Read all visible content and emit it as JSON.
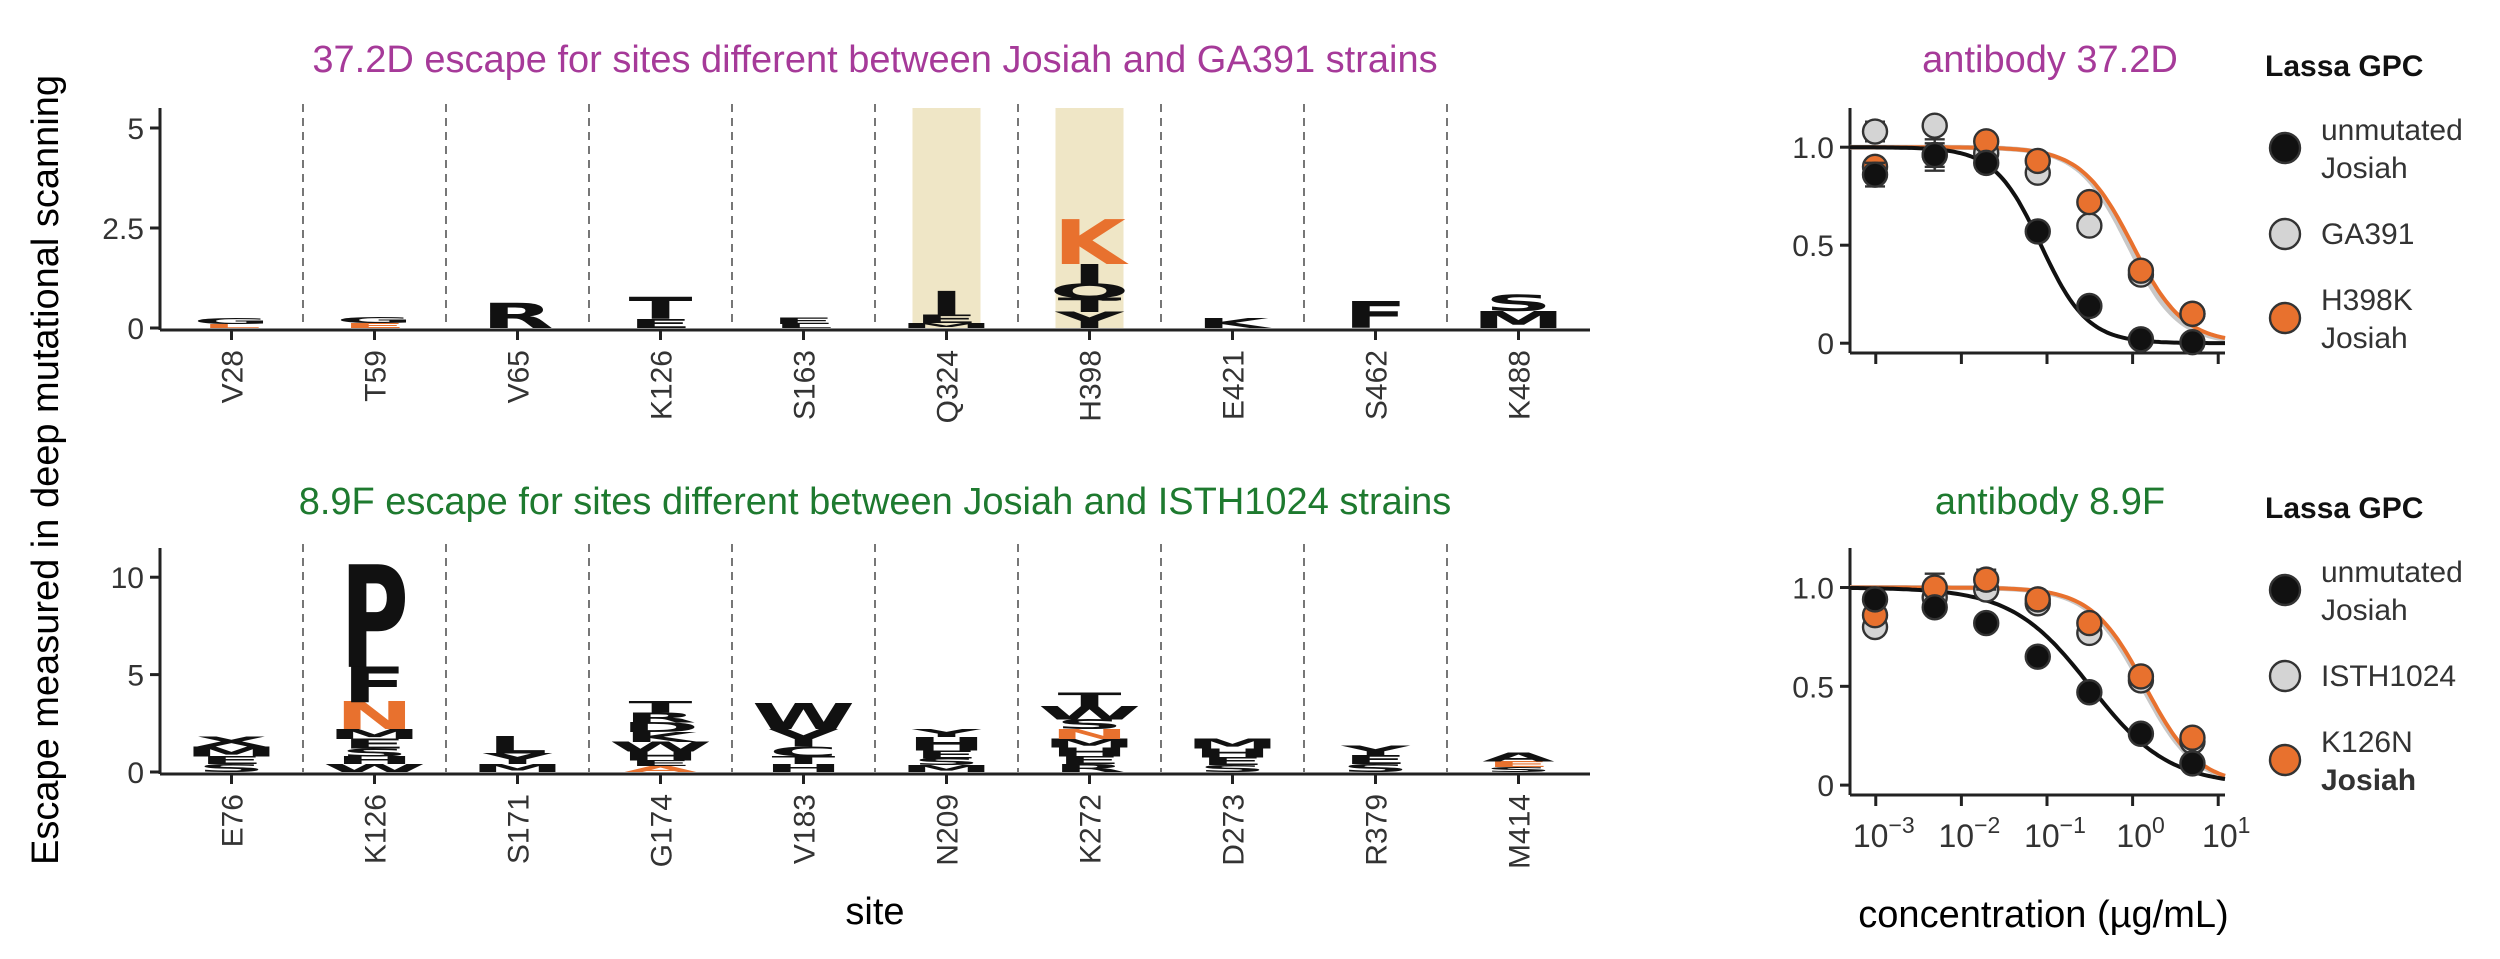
{
  "shared": {
    "ylabel": "Escape measured in deep mutational scanning",
    "site_xlabel": "site",
    "curve_xlabel": "concentration (µg/mL)",
    "x_tick_labels": [
      {
        "base": "10",
        "exp": "−3"
      },
      {
        "base": "10",
        "exp": "−2"
      },
      {
        "base": "10",
        "exp": "−1"
      },
      {
        "base": "10",
        "exp": "0"
      },
      {
        "base": "10",
        "exp": "1"
      }
    ]
  },
  "colors": {
    "title_top": "#A63A99",
    "title_bottom": "#1E7A2F",
    "orange": "#E8712E",
    "highlight": "#EFE6C6",
    "grey_point": "#D4D4D4",
    "black": "#111111",
    "grey_curve": "#C8C8C8"
  },
  "chart_data": [
    {
      "type": "logo",
      "title": "37.2D escape for sites different between Josiah and GA391 strains",
      "xlabel": "",
      "ylim": [
        0,
        5.5
      ],
      "y_ticks": [
        {
          "v": 0,
          "label": "0"
        },
        {
          "v": 2.5,
          "label": "2.5"
        },
        {
          "v": 5,
          "label": "5"
        }
      ],
      "sites": [
        {
          "label": "V28",
          "highlight": false,
          "letters": [
            {
              "l": "G",
              "h": 0.14,
              "c": "black"
            },
            {
              "l": "L",
              "h": 0.1,
              "c": "orange"
            }
          ]
        },
        {
          "label": "T59",
          "highlight": false,
          "letters": [
            {
              "l": "G",
              "h": 0.14,
              "c": "black"
            },
            {
              "l": "E",
              "h": 0.12,
              "c": "orange"
            }
          ]
        },
        {
          "label": "V65",
          "highlight": false,
          "letters": [
            {
              "l": "R",
              "h": 0.62,
              "c": "black"
            }
          ]
        },
        {
          "label": "K126",
          "highlight": false,
          "letters": [
            {
              "l": "T",
              "h": 0.55,
              "c": "black"
            },
            {
              "l": "E",
              "h": 0.22,
              "c": "black"
            }
          ]
        },
        {
          "label": "S163",
          "highlight": false,
          "letters": [
            {
              "l": "E",
              "h": 0.16,
              "c": "black"
            },
            {
              "l": "L",
              "h": 0.1,
              "c": "black"
            }
          ]
        },
        {
          "label": "Q324",
          "highlight": true,
          "letters": [
            {
              "l": "I",
              "h": 0.6,
              "c": "black"
            },
            {
              "l": "E",
              "h": 0.2,
              "c": "black"
            },
            {
              "l": "M",
              "h": 0.12,
              "c": "black"
            }
          ]
        },
        {
          "label": "H398",
          "highlight": true,
          "letters": [
            {
              "l": "K",
              "h": 1.1,
              "c": "orange"
            },
            {
              "l": "I",
              "h": 0.5,
              "c": "black"
            },
            {
              "l": "Q",
              "h": 0.35,
              "c": "black"
            },
            {
              "l": "T",
              "h": 0.35,
              "c": "black"
            },
            {
              "l": "Y",
              "h": 0.4,
              "c": "black"
            }
          ]
        },
        {
          "label": "E421",
          "highlight": false,
          "letters": [
            {
              "l": "K",
              "h": 0.24,
              "c": "black"
            }
          ]
        },
        {
          "label": "S462",
          "highlight": false,
          "letters": [
            {
              "l": "F",
              "h": 0.65,
              "c": "black"
            }
          ]
        },
        {
          "label": "K488",
          "highlight": false,
          "letters": [
            {
              "l": "S",
              "h": 0.4,
              "c": "black"
            },
            {
              "l": "M",
              "h": 0.42,
              "c": "black"
            }
          ]
        }
      ]
    },
    {
      "type": "line",
      "title": "antibody 37.2D",
      "xlabel": "",
      "x_scale": "log",
      "xlim": [
        0.0005,
        12
      ],
      "ylim": [
        -0.05,
        1.2
      ],
      "y_ticks": [
        {
          "v": 0,
          "label": "0"
        },
        {
          "v": 0.5,
          "label": "0.5"
        },
        {
          "v": 1,
          "label": "1.0"
        }
      ],
      "x_ticks": [
        0.001,
        0.01,
        0.1,
        1,
        10
      ],
      "show_x_tick_labels": false,
      "legend": {
        "title": "Lassa GPC",
        "placement": "right",
        "entries": [
          {
            "lines": [
              "unmutated",
              "Josiah"
            ],
            "color": "black",
            "bold": [
              false,
              false
            ]
          },
          {
            "lines": [
              "GA391"
            ],
            "color": "grey_point",
            "bold": [
              false
            ]
          },
          {
            "lines": [
              "H398K",
              "Josiah"
            ],
            "color": "orange",
            "bold": [
              false,
              false
            ]
          }
        ]
      },
      "series": [
        {
          "name": "unmutated Josiah",
          "color": "black",
          "ic50": 0.085,
          "hill": 1.6,
          "x": [
            0.00098,
            0.00488,
            0.0195,
            0.078,
            0.3125,
            1.25,
            5
          ],
          "y": [
            0.86,
            0.96,
            0.92,
            0.57,
            0.19,
            0.02,
            0.005
          ],
          "err": [
            0.06,
            0.08,
            0.04,
            0.02,
            0.02,
            0.01,
            0.01
          ]
        },
        {
          "name": "GA391",
          "color": "grey_point",
          "ic50": 0.9,
          "hill": 1.5,
          "x": [
            0.00098,
            0.00488,
            0.0195,
            0.078,
            0.3125,
            1.25,
            5
          ],
          "y": [
            1.08,
            1.11,
            0.97,
            0.87,
            0.6,
            0.35,
            0.15
          ],
          "err": [
            0.05,
            0.03,
            0.03,
            0.03,
            0.03,
            0.02,
            0.02
          ]
        },
        {
          "name": "H398K Josiah",
          "color": "orange",
          "ic50": 1.0,
          "hill": 1.45,
          "x": [
            0.00098,
            0.00488,
            0.0195,
            0.078,
            0.3125,
            1.25,
            5
          ],
          "y": [
            0.9,
            0.96,
            1.03,
            0.93,
            0.72,
            0.37,
            0.15
          ],
          "err": [
            0.03,
            0.06,
            0.03,
            0.04,
            0.03,
            0.02,
            0.02
          ]
        }
      ]
    },
    {
      "type": "logo",
      "title": "8.9F escape for sites different between Josiah and ISTH1024 strains",
      "xlabel": "site",
      "ylim": [
        0,
        11.5
      ],
      "y_ticks": [
        {
          "v": 0,
          "label": "0"
        },
        {
          "v": 5,
          "label": "5"
        },
        {
          "v": 10,
          "label": "10"
        }
      ],
      "sites": [
        {
          "label": "E76",
          "highlight": false,
          "letters": [
            {
              "l": "X",
              "h": 0.5,
              "c": "black"
            },
            {
              "l": "M",
              "h": 0.5,
              "c": "black"
            },
            {
              "l": "E",
              "h": 0.4,
              "c": "black"
            },
            {
              "l": "S",
              "h": 0.4,
              "c": "black"
            }
          ]
        },
        {
          "label": "K126",
          "highlight": false,
          "letters": [
            {
              "l": "P",
              "h": 5.2,
              "c": "black"
            },
            {
              "l": "F",
              "h": 1.8,
              "c": "black"
            },
            {
              "l": "N",
              "h": 1.4,
              "c": "orange"
            },
            {
              "l": "M",
              "h": 0.5,
              "c": "black"
            },
            {
              "l": "E",
              "h": 0.5,
              "c": "black"
            },
            {
              "l": "S",
              "h": 0.4,
              "c": "black"
            },
            {
              "l": "H",
              "h": 0.4,
              "c": "black"
            },
            {
              "l": "W",
              "h": 0.4,
              "c": "black"
            }
          ]
        },
        {
          "label": "S171",
          "highlight": false,
          "letters": [
            {
              "l": "L",
              "h": 0.9,
              "c": "black"
            },
            {
              "l": "Y",
              "h": 0.55,
              "c": "black"
            },
            {
              "l": "M",
              "h": 0.4,
              "c": "black"
            }
          ]
        },
        {
          "label": "G174",
          "highlight": false,
          "letters": [
            {
              "l": "T",
              "h": 0.6,
              "c": "black"
            },
            {
              "l": "R",
              "h": 0.5,
              "c": "black"
            },
            {
              "l": "D",
              "h": 0.5,
              "c": "black"
            },
            {
              "l": "K",
              "h": 0.5,
              "c": "black"
            },
            {
              "l": "W",
              "h": 0.5,
              "c": "black"
            },
            {
              "l": "H",
              "h": 0.45,
              "c": "black"
            },
            {
              "l": "E",
              "h": 0.3,
              "c": "black"
            },
            {
              "l": "A",
              "h": 0.3,
              "c": "orange"
            }
          ]
        },
        {
          "label": "V183",
          "highlight": false,
          "letters": [
            {
              "l": "W",
              "h": 1.3,
              "c": "black"
            },
            {
              "l": "Y",
              "h": 0.9,
              "c": "black"
            },
            {
              "l": "C",
              "h": 0.5,
              "c": "black"
            },
            {
              "l": "T",
              "h": 0.4,
              "c": "black"
            },
            {
              "l": "H",
              "h": 0.4,
              "c": "black"
            }
          ]
        },
        {
          "label": "N209",
          "highlight": false,
          "letters": [
            {
              "l": "Y",
              "h": 0.4,
              "c": "black"
            },
            {
              "l": "H",
              "h": 0.7,
              "c": "black"
            },
            {
              "l": "E",
              "h": 0.4,
              "c": "black"
            },
            {
              "l": "S",
              "h": 0.35,
              "c": "black"
            },
            {
              "l": "M",
              "h": 0.35,
              "c": "black"
            }
          ]
        },
        {
          "label": "K272",
          "highlight": false,
          "letters": [
            {
              "l": "T",
              "h": 0.7,
              "c": "black"
            },
            {
              "l": "W",
              "h": 0.7,
              "c": "black"
            },
            {
              "l": "S",
              "h": 0.5,
              "c": "black"
            },
            {
              "l": "N",
              "h": 0.5,
              "c": "orange"
            },
            {
              "l": "M",
              "h": 0.45,
              "c": "black"
            },
            {
              "l": "H",
              "h": 0.45,
              "c": "black"
            },
            {
              "l": "E",
              "h": 0.4,
              "c": "black"
            },
            {
              "l": "R",
              "h": 0.4,
              "c": "black"
            }
          ]
        },
        {
          "label": "D273",
          "highlight": false,
          "letters": [
            {
              "l": "M",
              "h": 0.5,
              "c": "black"
            },
            {
              "l": "H",
              "h": 0.45,
              "c": "black"
            },
            {
              "l": "E",
              "h": 0.4,
              "c": "black"
            },
            {
              "l": "S",
              "h": 0.35,
              "c": "black"
            }
          ]
        },
        {
          "label": "R379",
          "highlight": false,
          "letters": [
            {
              "l": "Y",
              "h": 0.5,
              "c": "black"
            },
            {
              "l": "E",
              "h": 0.45,
              "c": "black"
            },
            {
              "l": "S",
              "h": 0.4,
              "c": "black"
            }
          ]
        },
        {
          "label": "M414",
          "highlight": false,
          "letters": [
            {
              "l": "A",
              "h": 0.45,
              "c": "black"
            },
            {
              "l": "E",
              "h": 0.3,
              "c": "orange"
            },
            {
              "l": "S",
              "h": 0.25,
              "c": "black"
            }
          ]
        }
      ]
    },
    {
      "type": "line",
      "title": "antibody 8.9F",
      "xlabel": "concentration (µg/mL)",
      "x_scale": "log",
      "xlim": [
        0.0005,
        12
      ],
      "ylim": [
        -0.05,
        1.2
      ],
      "y_ticks": [
        {
          "v": 0,
          "label": "0"
        },
        {
          "v": 0.5,
          "label": "0.5"
        },
        {
          "v": 1,
          "label": "1.0"
        }
      ],
      "x_ticks": [
        0.001,
        0.01,
        0.1,
        1,
        10
      ],
      "show_x_tick_labels": true,
      "legend": {
        "title": "Lassa GPC",
        "placement": "right",
        "entries": [
          {
            "lines": [
              "unmutated",
              "Josiah"
            ],
            "color": "black",
            "bold": [
              false,
              false
            ]
          },
          {
            "lines": [
              "ISTH1024"
            ],
            "color": "grey_point",
            "bold": [
              false
            ]
          },
          {
            "lines": [
              "K126N",
              "Josiah"
            ],
            "color": "orange",
            "bold": [
              false,
              true
            ]
          }
        ]
      },
      "series": [
        {
          "name": "unmutated Josiah",
          "color": "black",
          "ic50": 0.32,
          "hill": 0.95,
          "x": [
            0.00098,
            0.00488,
            0.0195,
            0.078,
            0.3125,
            1.25,
            5
          ],
          "y": [
            0.94,
            0.9,
            0.82,
            0.65,
            0.47,
            0.26,
            0.11
          ],
          "err": [
            0.02,
            0.02,
            0.02,
            0.02,
            0.02,
            0.02,
            0.02
          ]
        },
        {
          "name": "ISTH1024",
          "color": "grey_point",
          "ic50": 1.3,
          "hill": 1.4,
          "x": [
            0.00098,
            0.00488,
            0.0195,
            0.078,
            0.3125,
            1.25,
            5
          ],
          "y": [
            0.8,
            0.95,
            0.99,
            0.92,
            0.77,
            0.53,
            0.22
          ],
          "err": [
            0.03,
            0.05,
            0.03,
            0.03,
            0.03,
            0.02,
            0.02
          ]
        },
        {
          "name": "K126N Josiah",
          "color": "orange",
          "ic50": 1.4,
          "hill": 1.4,
          "x": [
            0.00098,
            0.00488,
            0.0195,
            0.078,
            0.3125,
            1.25,
            5
          ],
          "y": [
            0.86,
            1.0,
            1.04,
            0.94,
            0.82,
            0.55,
            0.24
          ],
          "err": [
            0.03,
            0.07,
            0.05,
            0.04,
            0.03,
            0.02,
            0.02
          ]
        }
      ]
    }
  ]
}
